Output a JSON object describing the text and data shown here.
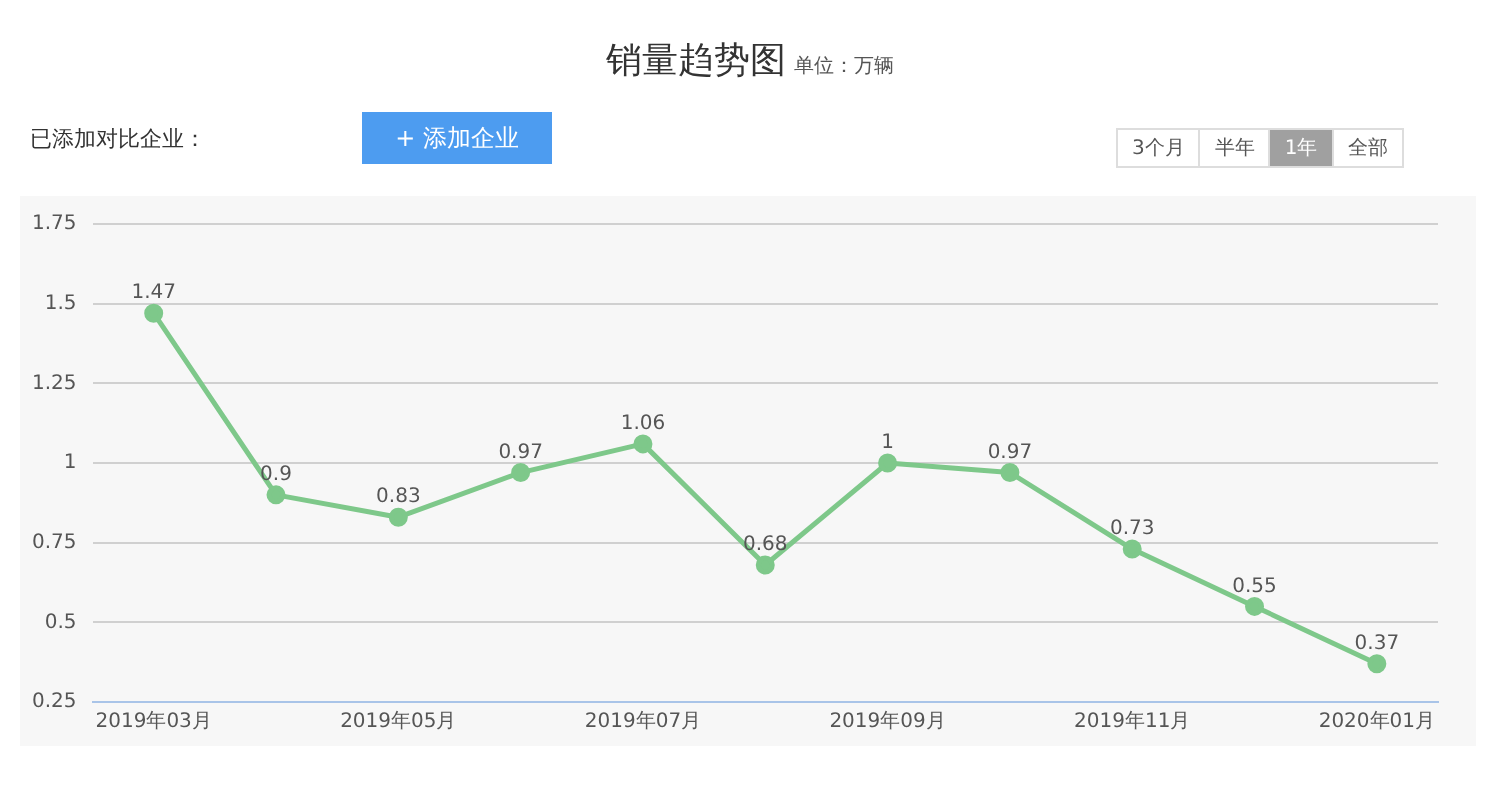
{
  "chart_data": {
    "type": "line",
    "title": "销量趋势图",
    "subtitle": "单位：万辆",
    "categories": [
      "2019年03月",
      null,
      "2019年05月",
      null,
      "2019年07月",
      null,
      "2019年09月",
      null,
      "2019年11月",
      null,
      "2020年01月"
    ],
    "series": [
      {
        "color": "#7ec88a",
        "values": [
          1.47,
          0.9,
          0.83,
          0.97,
          1.06,
          0.68,
          1,
          0.97,
          0.73,
          0.55,
          0.37
        ]
      }
    ],
    "ylim": [
      0.25,
      1.75
    ],
    "yticks": [
      0.25,
      0.5,
      0.75,
      1,
      1.25,
      1.5,
      1.75
    ],
    "grid": "y",
    "legend": false,
    "marker": "circle",
    "line_style": "solid",
    "data_labels": true,
    "annotations": [
      "已添加对比企业：",
      "+ 添加企业",
      "3个月",
      "半年",
      "1年",
      "全部"
    ]
  }
}
